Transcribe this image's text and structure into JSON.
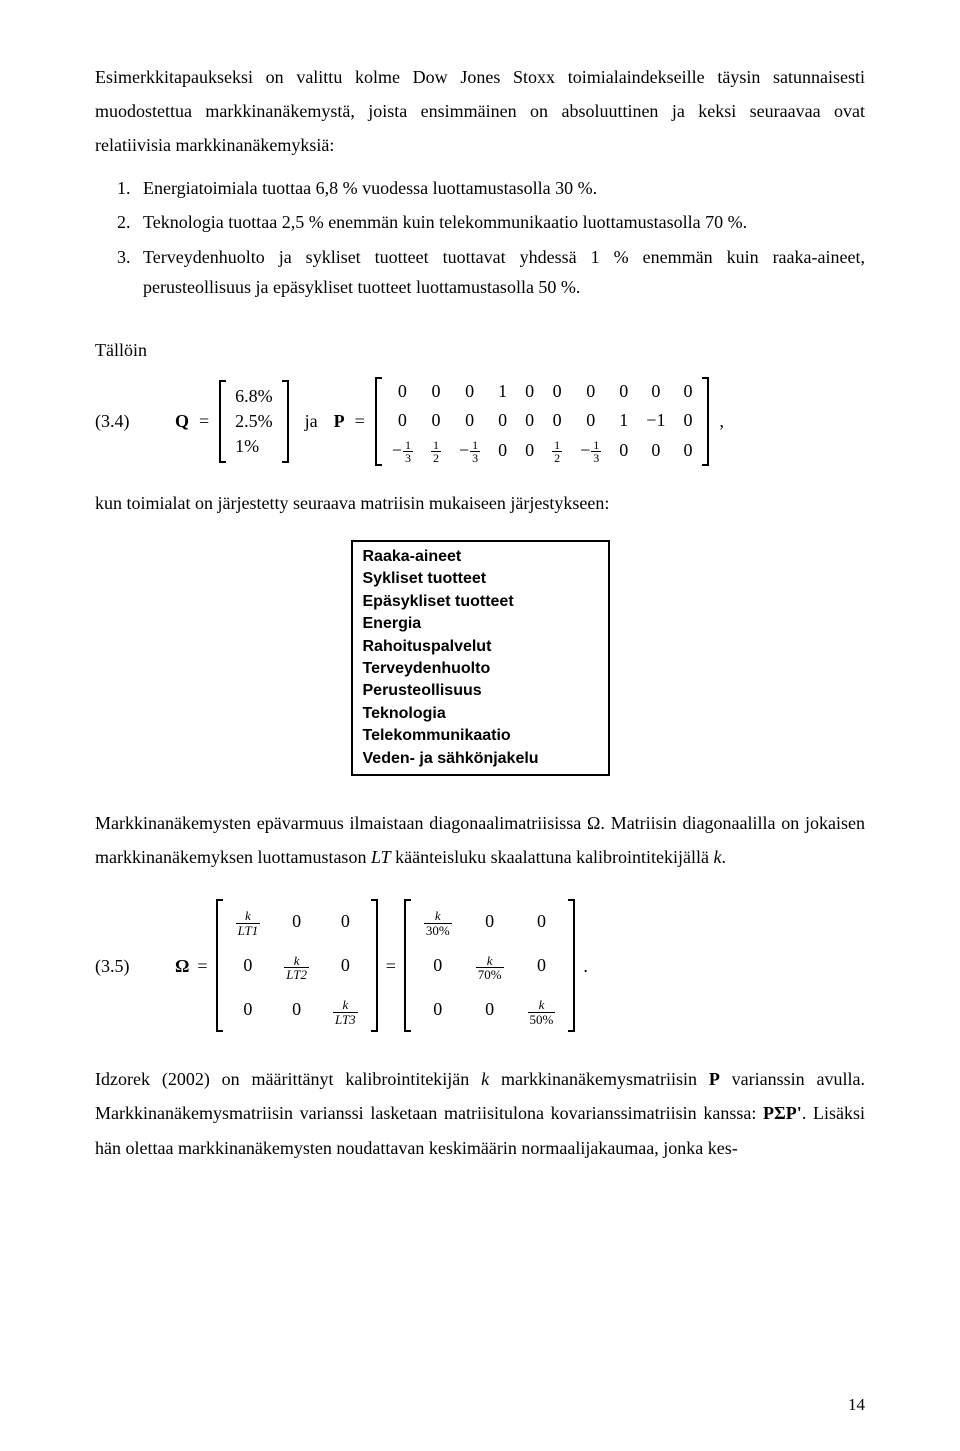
{
  "intro": "Esimerkkitapaukseksi on valittu kolme Dow Jones Stoxx toimialaindekseille täysin satunnaisesti muodostettua markkinanäkemystä, joista ensimmäinen on absoluuttinen ja keksi seuraavaa ovat relatiivisia markkinanäkemyksiä:",
  "list": {
    "item1": "Energiatoimiala tuottaa 6,8 % vuodessa luottamustasolla 30 %.",
    "item2": "Teknologia tuottaa 2,5 % enemmän kuin telekommunikaatio luottamustasolla 70 %.",
    "item3": "Terveydenhuolto ja sykliset tuotteet tuottavat yhdessä 1 % enemmän kuin raaka-aineet, perusteollisuus ja epäsykliset tuotteet luottamustasolla 50 %."
  },
  "talloin": "Tällöin",
  "eq34": {
    "num": "(3.4)",
    "Q_label": "Q",
    "eq_sign": "=",
    "Q_values": [
      "6.8%",
      "2.5%",
      "1%"
    ],
    "ja": "ja",
    "P_label": "P",
    "P_rows": [
      [
        "0",
        "0",
        "0",
        "1",
        "0",
        "0",
        "0",
        "0",
        "0",
        "0"
      ],
      [
        "0",
        "0",
        "0",
        "0",
        "0",
        "0",
        "0",
        "1",
        "−1",
        "0"
      ]
    ],
    "P_row3_pattern": [
      "-1/3",
      "1/2",
      "-1/3",
      "0",
      "0",
      "1/2",
      "-1/3",
      "0",
      "0",
      "0"
    ],
    "trailing": ","
  },
  "after_eq34": "kun toimialat on järjestetty seuraava matriisin mukaiseen järjestykseen:",
  "sectors": [
    "Raaka-aineet",
    "Sykliset tuotteet",
    "Epäsykliset tuotteet",
    "Energia",
    "Rahoituspalvelut",
    "Terveydenhuolto",
    "Perusteollisuus",
    "Teknologia",
    "Telekommunikaatio",
    "Veden- ja sähkönjakelu"
  ],
  "para_omega": {
    "part1": "Markkinanäkemysten epävarmuus ilmaistaan diagonaalimatriisissa ",
    "omega": "Ω",
    "part2": ". Matriisin diagonaalilla on jokaisen markkinanäkemyksen luottamustason ",
    "LT": "LT",
    "part3": " käänteisluku skaalattuna kalibrointitekijällä ",
    "k": "k",
    "part4": "."
  },
  "eq35": {
    "num": "(3.5)",
    "Omega_label": "Ω",
    "eq_sign": "=",
    "left_matrix": {
      "diag_top": "k",
      "LT1": "LT1",
      "LT2": "LT2",
      "LT3": "LT3",
      "zero": "0"
    },
    "right_matrix": {
      "diag_top": "k",
      "d1": "30%",
      "d2": "70%",
      "d3": "50%",
      "zero": "0"
    },
    "trailing": "."
  },
  "para_idzorek": {
    "p1a": "Idzorek (2002) on määrittänyt kalibrointitekijän ",
    "k": "k",
    "p1b": " markkinanäkemysmatriisin ",
    "P": "P",
    "p1c": " varianssin avulla. Markkinanäkemysmatriisin varianssi lasketaan matriisitulona kovarianssimatriisin kanssa: ",
    "PSP": "PΣP'",
    "p1d": ". Lisäksi hän olettaa markkinanäkemysten noudattavan keskimäärin normaalijakaumaa, jonka kes-"
  },
  "page_number": "14"
}
